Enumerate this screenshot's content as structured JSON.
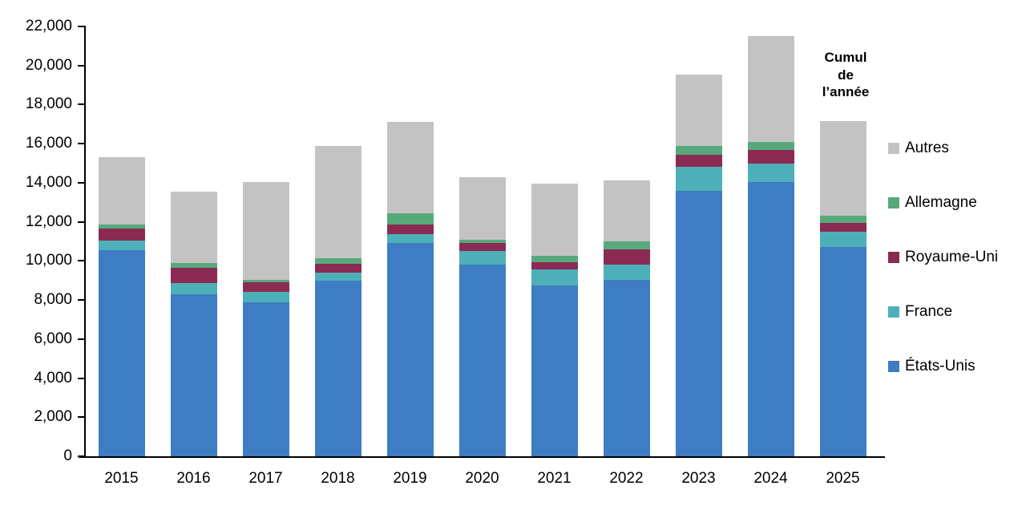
{
  "chart_data": {
    "type": "bar",
    "stacked": true,
    "title": "",
    "xlabel": "",
    "ylabel": "",
    "categories": [
      "2015",
      "2016",
      "2017",
      "2018",
      "2019",
      "2020",
      "2021",
      "2022",
      "2023",
      "2024",
      "2025"
    ],
    "series": [
      {
        "name": "États-Unis",
        "color": "#3e7cc4",
        "values": [
          10550,
          8300,
          7900,
          9000,
          10900,
          9800,
          8750,
          9050,
          13600,
          14050,
          10700
        ]
      },
      {
        "name": "France",
        "color": "#4db0b8",
        "values": [
          500,
          550,
          500,
          400,
          450,
          700,
          800,
          750,
          1200,
          950,
          800
        ]
      },
      {
        "name": "Royaume-Uni",
        "color": "#8b2a52",
        "values": [
          600,
          800,
          500,
          450,
          500,
          400,
          400,
          800,
          650,
          700,
          450
        ]
      },
      {
        "name": "Allemagne",
        "color": "#57a97b",
        "values": [
          200,
          250,
          150,
          300,
          600,
          200,
          300,
          400,
          450,
          400,
          350
        ]
      },
      {
        "name": "Autres",
        "color": "#c3c3c4",
        "values": [
          3450,
          3650,
          5000,
          5750,
          4650,
          3200,
          3700,
          3100,
          3650,
          5400,
          4850
        ]
      }
    ],
    "totals": [
      15300,
      13550,
      14050,
      15900,
      17100,
      14300,
      13950,
      14100,
      19550,
      21500,
      17150
    ],
    "ylim": [
      0,
      22000
    ],
    "ytick_step": 2000,
    "ytick_labels": [
      "0",
      "2,000",
      "4,000",
      "6,000",
      "8,000",
      "10,000",
      "12,000",
      "14,000",
      "16,000",
      "18,000",
      "20,000",
      "22,000"
    ],
    "grid": false,
    "legend_position": "right",
    "legend_order_top_to_bottom": [
      "Autres",
      "Allemagne",
      "Royaume-Uni",
      "France",
      "États-Unis"
    ]
  },
  "annotation": {
    "lines": [
      "Cumul",
      "de",
      "l’année"
    ]
  },
  "colors": {
    "axis": "#000000",
    "background": "#ffffff"
  }
}
